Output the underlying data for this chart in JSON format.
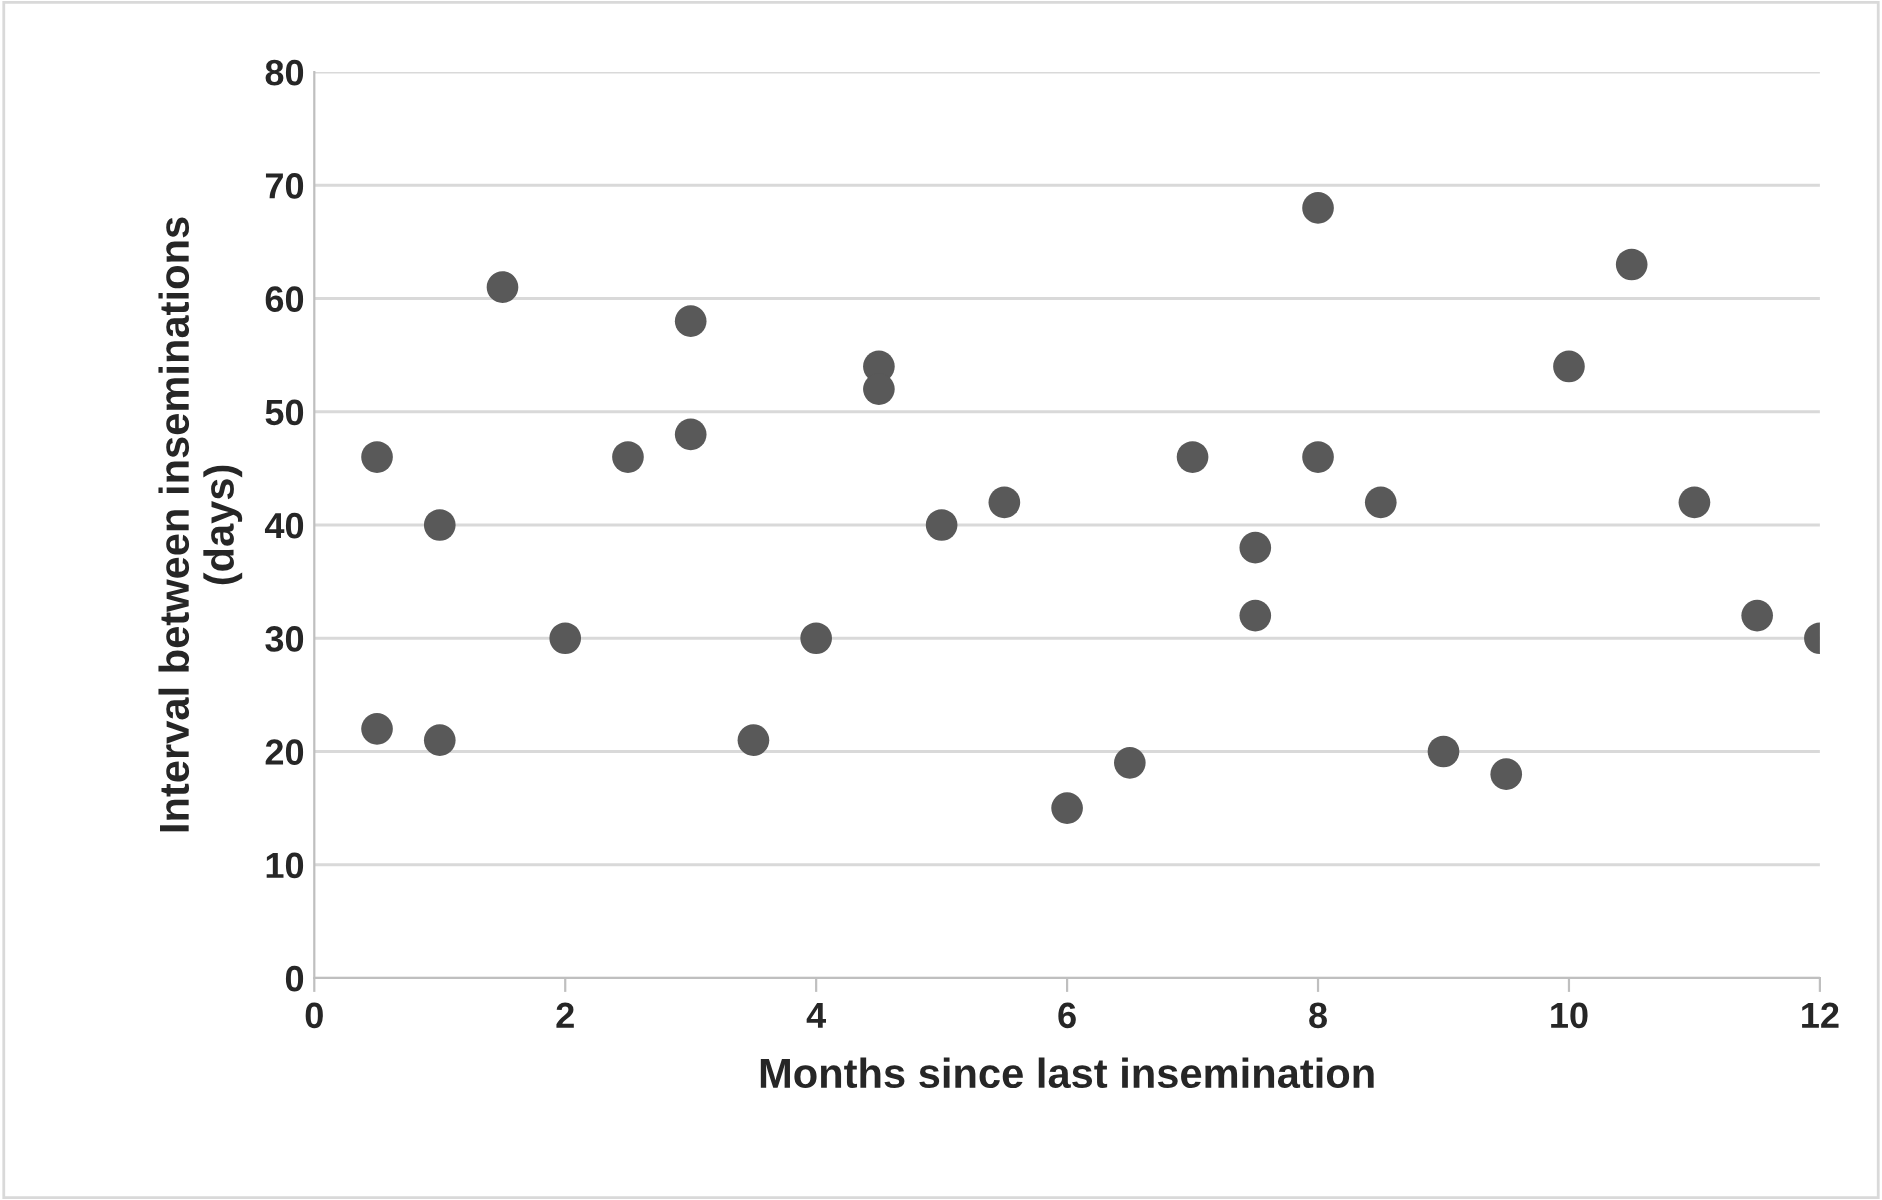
{
  "chart_data": {
    "type": "scatter",
    "xlabel": "Months since last insemination",
    "ylabel": "Interval between inseminations\n(days)",
    "x": [
      0.5,
      0.5,
      1,
      1,
      1.5,
      2,
      2.5,
      3,
      3,
      3.5,
      4,
      4.5,
      4.5,
      5,
      5.5,
      6,
      6.5,
      7,
      7.5,
      7.5,
      8,
      8,
      8.5,
      9,
      9.5,
      10,
      10.5,
      11,
      11.5,
      12
    ],
    "values": [
      46,
      22,
      40,
      21,
      61,
      30,
      46,
      58,
      48,
      21,
      30,
      54,
      52,
      40,
      42,
      15,
      19,
      46,
      38,
      32,
      68,
      46,
      42,
      20,
      18,
      54,
      63,
      42,
      32,
      30
    ],
    "color": "#595959",
    "marker": "circle",
    "xlim": [
      0,
      12
    ],
    "xticks": [
      0,
      2,
      4,
      6,
      8,
      10,
      12
    ],
    "ylim": [
      0,
      80
    ],
    "yticks": [
      0,
      10,
      20,
      30,
      40,
      50,
      60,
      70,
      80
    ],
    "grid": "y"
  }
}
